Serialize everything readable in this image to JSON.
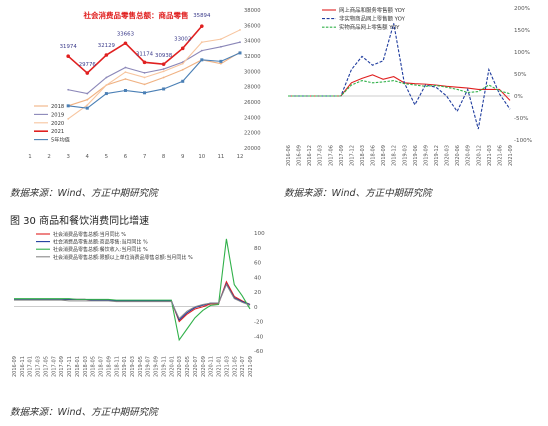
{
  "figure": {
    "title": "图 30   商品和餐饮消费同比增速"
  },
  "sources": {
    "left_top": "数据来源：Wind、方正中期研究院",
    "right_top": "数据来源：Wind、方正中期研究院",
    "bottom": "数据来源：Wind、方正中期研究院"
  },
  "colors": {
    "c2018": "#f0b283",
    "c2019": "#8b87b8",
    "c2020": "#f7c59f",
    "c2021": "#e02020",
    "c5yr": "#4a7fb5",
    "cA": "#e02020",
    "cB": "#1f3c9e",
    "cC": "#31b14a",
    "cD": "#888888"
  },
  "chart_data": [
    {
      "type": "line",
      "title": "社会消费品零售总额：商品零售",
      "x": [
        1,
        2,
        3,
        4,
        5,
        6,
        7,
        8,
        9,
        10,
        11,
        12
      ],
      "xticks": [
        "1",
        "2",
        "3",
        "4",
        "5",
        "6",
        "7",
        "8",
        "9",
        "10",
        "11",
        "12"
      ],
      "ylim": [
        20000,
        38000
      ],
      "yticks": [
        "20000",
        "22000",
        "24000",
        "26000",
        "28000",
        "30000",
        "32000",
        "34000",
        "36000",
        "38000"
      ],
      "legend": [
        "2018",
        "2019",
        "2020",
        "2021",
        "5年均值"
      ],
      "series": [
        {
          "name": "2018",
          "x": [
            3,
            4,
            5,
            6,
            7,
            8,
            9,
            10,
            11,
            12
          ],
          "values": [
            25500,
            26300,
            28200,
            29000,
            28300,
            29200,
            30200,
            31500,
            31000,
            32500
          ]
        },
        {
          "name": "2019",
          "x": [
            3,
            4,
            5,
            6,
            7,
            8,
            9,
            10,
            11,
            12
          ],
          "values": [
            27600,
            27100,
            29200,
            30500,
            29800,
            30300,
            31200,
            32700,
            33200,
            33800
          ]
        },
        {
          "name": "2020",
          "x": [
            3,
            4,
            5,
            6,
            7,
            8,
            9,
            10,
            11,
            12
          ],
          "values": [
            23800,
            25600,
            28200,
            29900,
            29200,
            30000,
            31000,
            33800,
            34200,
            35400
          ]
        },
        {
          "name": "2021",
          "x": [
            3,
            4,
            5,
            6,
            7,
            8,
            9,
            10
          ],
          "values": [
            31974,
            29776,
            32129,
            33663,
            31174,
            30938,
            33002,
            35894
          ]
        },
        {
          "name": "5年均值",
          "x": [
            3,
            4,
            5,
            6,
            7,
            8,
            9,
            10,
            11,
            12
          ],
          "values": [
            25500,
            25200,
            27100,
            27500,
            27200,
            27700,
            28700,
            31500,
            31300,
            32400
          ]
        }
      ],
      "data_labels": [
        "31974",
        "29776",
        "32129",
        "33663",
        "31174",
        "30938",
        "33002",
        "35894"
      ]
    },
    {
      "type": "line",
      "x": [
        "2016-06",
        "2016-09",
        "2016-12",
        "2017-03",
        "2017-06",
        "2017-09",
        "2017-12",
        "2018-03",
        "2018-06",
        "2018-09",
        "2018-12",
        "2019-03",
        "2019-06",
        "2019-09",
        "2019-12",
        "2020-03",
        "2020-06",
        "2020-09",
        "2020-12",
        "2021-03",
        "2021-06",
        "2021-09"
      ],
      "ylim": [
        -100,
        200
      ],
      "yticks": [
        "200%",
        "150%",
        "100%",
        "50%",
        "0%",
        "-50%",
        "-100%"
      ],
      "legend": [
        "网上商品和服务零售额  YOY",
        "非实物商品网上零售额  YOY",
        "实物商品网上零售额  YOY"
      ],
      "series": [
        {
          "name": "网上商品和服务零售额  YOY",
          "x": [
            0,
            2,
            3,
            4,
            5,
            6,
            7,
            8,
            9,
            10,
            11,
            12,
            13,
            14,
            15,
            16,
            17,
            18,
            19,
            20,
            21
          ],
          "values": [
            0,
            0,
            0,
            0,
            0,
            30,
            40,
            48,
            38,
            44,
            30,
            28,
            27,
            25,
            22,
            20,
            18,
            15,
            15,
            15,
            -10
          ]
        },
        {
          "name": "非实物商品网上零售额  YOY",
          "x": [
            0,
            2,
            3,
            4,
            5,
            6,
            7,
            8,
            9,
            10,
            11,
            12,
            13,
            14,
            15,
            16,
            17,
            18,
            19,
            20,
            21
          ],
          "values": [
            0,
            0,
            0,
            0,
            0,
            60,
            90,
            70,
            80,
            165,
            30,
            -20,
            25,
            20,
            0,
            -35,
            15,
            -75,
            60,
            5,
            -30
          ]
        },
        {
          "name": "实物商品网上零售额  YOY",
          "x": [
            0,
            2,
            3,
            4,
            5,
            6,
            7,
            8,
            9,
            10,
            11,
            12,
            13,
            14,
            15,
            16,
            17,
            18,
            19,
            20,
            21
          ],
          "values": [
            0,
            0,
            0,
            0,
            0,
            25,
            35,
            30,
            32,
            35,
            28,
            25,
            22,
            24,
            20,
            15,
            8,
            10,
            25,
            12,
            5
          ]
        }
      ]
    },
    {
      "type": "line",
      "x": [
        "2016-09",
        "2016-11",
        "2017-01",
        "2017-03",
        "2017-05",
        "2017-07",
        "2017-09",
        "2017-11",
        "2018-01",
        "2018-03",
        "2018-05",
        "2018-07",
        "2018-09",
        "2018-11",
        "2019-01",
        "2019-03",
        "2019-05",
        "2019-07",
        "2019-09",
        "2019-11",
        "2020-01",
        "2020-03",
        "2020-05",
        "2020-07",
        "2020-09",
        "2020-11",
        "2021-01",
        "2021-03",
        "2021-05",
        "2021-07",
        "2021-09"
      ],
      "ylim": [
        -60,
        100
      ],
      "yticks": [
        "100",
        "80",
        "60",
        "40",
        "20",
        "0",
        "-20",
        "-40",
        "-60"
      ],
      "legend": [
        "社会消费品零售总额:当月同比  %",
        "社会消费品零售总额:商品零售:当月同比  %",
        "社会消费品零售总额:餐饮收入:当月同比  %",
        "社会消费品零售总额:限额以上单位消费品零售总额:当月同比  %"
      ],
      "series": [
        {
          "name": "社会消费品零售总额:当月同比  %",
          "values": [
            10,
            10,
            10,
            10,
            10,
            10,
            10,
            10,
            10,
            10,
            9,
            9,
            9,
            8,
            8,
            8,
            8,
            8,
            8,
            8,
            8,
            -20,
            -10,
            -3,
            0,
            4,
            4,
            34,
            14,
            8,
            3
          ]
        },
        {
          "name": "社会消费品零售总额:商品零售:当月同比  %",
          "values": [
            10,
            10,
            10,
            10,
            10,
            10,
            10,
            10,
            10,
            10,
            9,
            9,
            9,
            8,
            8,
            8,
            8,
            8,
            8,
            8,
            8,
            -18,
            -8,
            -1,
            2,
            5,
            5,
            31,
            12,
            7,
            3
          ]
        },
        {
          "name": "社会消费品零售总额:餐饮收入:当月同比  %",
          "values": [
            11,
            11,
            11,
            11,
            11,
            11,
            11,
            11,
            10,
            10,
            10,
            10,
            10,
            9,
            9,
            9,
            9,
            9,
            9,
            9,
            9,
            -45,
            -30,
            -15,
            -5,
            2,
            3,
            92,
            30,
            15,
            -3
          ]
        },
        {
          "name": "社会消费品零售总额:限额以上单位消费品零售总额:当月同比  %",
          "values": [
            9,
            9,
            9,
            9,
            9,
            9,
            9,
            8,
            8,
            8,
            8,
            8,
            8,
            7,
            7,
            7,
            7,
            7,
            7,
            7,
            7,
            -16,
            -6,
            0,
            3,
            5,
            5,
            30,
            11,
            6,
            2
          ]
        }
      ]
    }
  ]
}
